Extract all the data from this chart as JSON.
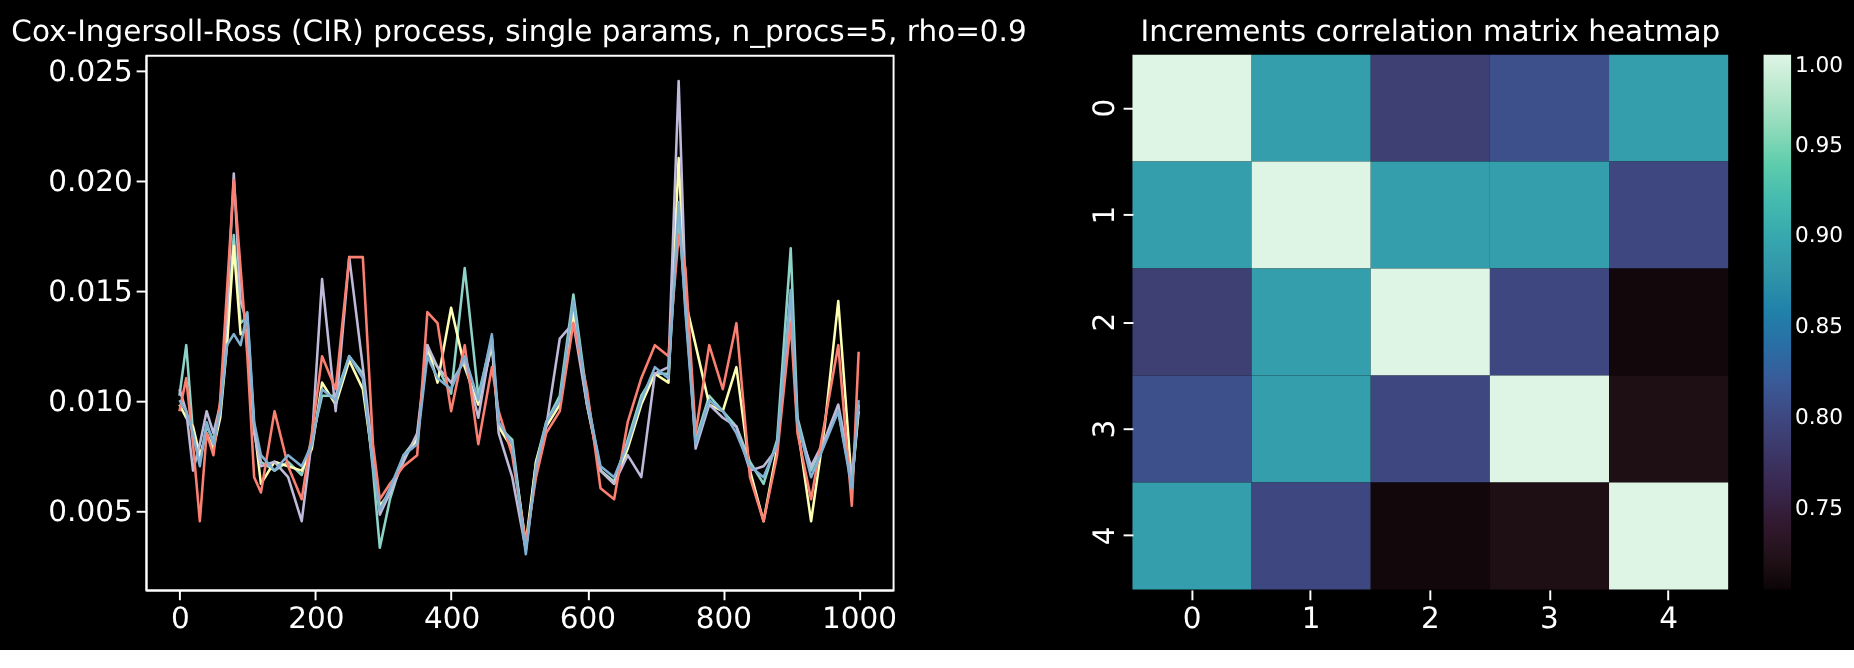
{
  "chart_data": [
    {
      "type": "line",
      "title": "Cox-Ingersoll-Ross (CIR) process, single params, n_procs=5, rho=0.9",
      "x": [
        0,
        10,
        20,
        30,
        40,
        50,
        60,
        70,
        80,
        90,
        100,
        110,
        120,
        140,
        160,
        180,
        195,
        210,
        230,
        250,
        270,
        285,
        295,
        310,
        330,
        350,
        365,
        380,
        400,
        420,
        440,
        460,
        470,
        490,
        510,
        525,
        540,
        560,
        580,
        600,
        620,
        640,
        660,
        680,
        700,
        720,
        735,
        745,
        760,
        780,
        800,
        820,
        840,
        860,
        880,
        900,
        910,
        930,
        950,
        970,
        990,
        1000
      ],
      "series": [
        {
          "color": "#8dd3c7",
          "values": [
            0.0102,
            0.0125,
            0.0085,
            0.0072,
            0.0088,
            0.0082,
            0.0095,
            0.0128,
            0.0175,
            0.0135,
            0.0138,
            0.0088,
            0.0072,
            0.0068,
            0.0072,
            0.0066,
            0.0082,
            0.0102,
            0.0102,
            0.012,
            0.0112,
            0.0068,
            0.0033,
            0.0055,
            0.0075,
            0.0083,
            0.0122,
            0.0115,
            0.0103,
            0.016,
            0.0102,
            0.0128,
            0.0088,
            0.0082,
            0.0032,
            0.0072,
            0.009,
            0.0102,
            0.0148,
            0.0102,
            0.0068,
            0.0063,
            0.0082,
            0.0102,
            0.0112,
            0.0112,
            0.0185,
            0.0142,
            0.0082,
            0.0102,
            0.0095,
            0.0088,
            0.0072,
            0.0062,
            0.0082,
            0.0169,
            0.0092,
            0.0068,
            0.0082,
            0.0095,
            0.0062,
            0.0098
          ]
        },
        {
          "color": "#ffffb3",
          "values": [
            0.0098,
            0.0092,
            0.0088,
            0.0075,
            0.0085,
            0.0078,
            0.0092,
            0.0125,
            0.017,
            0.013,
            0.0132,
            0.0088,
            0.0062,
            0.0072,
            0.007,
            0.0068,
            0.0078,
            0.0108,
            0.0098,
            0.0118,
            0.0105,
            0.0072,
            0.0052,
            0.0058,
            0.0074,
            0.0082,
            0.0125,
            0.0108,
            0.0142,
            0.0115,
            0.0098,
            0.0125,
            0.0088,
            0.0078,
            0.0035,
            0.0072,
            0.0088,
            0.0098,
            0.014,
            0.0098,
            0.0068,
            0.0062,
            0.0078,
            0.0098,
            0.0112,
            0.0108,
            0.021,
            0.0145,
            0.0125,
            0.0098,
            0.0095,
            0.0115,
            0.0068,
            0.0045,
            0.0078,
            0.0145,
            0.0088,
            0.0045,
            0.0088,
            0.0145,
            0.0062,
            0.0095
          ]
        },
        {
          "color": "#bebada",
          "values": [
            0.0105,
            0.0095,
            0.0068,
            0.008,
            0.0095,
            0.0085,
            0.0098,
            0.014,
            0.0203,
            0.0145,
            0.0135,
            0.0085,
            0.007,
            0.0072,
            0.0065,
            0.0045,
            0.0082,
            0.0155,
            0.0095,
            0.0165,
            0.0115,
            0.0075,
            0.0048,
            0.0058,
            0.0072,
            0.0085,
            0.0125,
            0.0115,
            0.0108,
            0.0118,
            0.0092,
            0.0128,
            0.0085,
            0.0065,
            0.0032,
            0.0068,
            0.0088,
            0.0128,
            0.0135,
            0.0098,
            0.0068,
            0.0062,
            0.0075,
            0.0065,
            0.0112,
            0.0115,
            0.0245,
            0.015,
            0.0078,
            0.0098,
            0.0092,
            0.0088,
            0.0068,
            0.007,
            0.0078,
            0.0145,
            0.0088,
            0.007,
            0.0082,
            0.0098,
            0.0065,
            0.0098
          ]
        },
        {
          "color": "#fb8072",
          "values": [
            0.0095,
            0.011,
            0.008,
            0.0045,
            0.0085,
            0.0075,
            0.01,
            0.015,
            0.02,
            0.016,
            0.012,
            0.0065,
            0.0058,
            0.0095,
            0.007,
            0.0055,
            0.0085,
            0.012,
            0.0105,
            0.0165,
            0.0165,
            0.008,
            0.0055,
            0.0062,
            0.007,
            0.0075,
            0.014,
            0.0135,
            0.0095,
            0.0125,
            0.008,
            0.0115,
            0.0095,
            0.0075,
            0.0035,
            0.0065,
            0.0085,
            0.0095,
            0.0135,
            0.0105,
            0.006,
            0.0055,
            0.009,
            0.011,
            0.0125,
            0.012,
            0.0175,
            0.016,
            0.0085,
            0.0125,
            0.0105,
            0.0135,
            0.0065,
            0.0045,
            0.0075,
            0.0135,
            0.0085,
            0.0055,
            0.009,
            0.0125,
            0.0052,
            0.0122
          ]
        },
        {
          "color": "#80b1d3",
          "values": [
            0.01,
            0.0095,
            0.0085,
            0.007,
            0.009,
            0.008,
            0.0095,
            0.0125,
            0.013,
            0.0125,
            0.014,
            0.009,
            0.0075,
            0.0068,
            0.0075,
            0.007,
            0.008,
            0.0105,
            0.01,
            0.012,
            0.011,
            0.007,
            0.005,
            0.006,
            0.0075,
            0.008,
            0.012,
            0.011,
            0.0105,
            0.012,
            0.01,
            0.013,
            0.009,
            0.008,
            0.003,
            0.007,
            0.009,
            0.01,
            0.0145,
            0.01,
            0.007,
            0.0065,
            0.008,
            0.01,
            0.0115,
            0.011,
            0.019,
            0.014,
            0.008,
            0.01,
            0.0095,
            0.0085,
            0.007,
            0.0065,
            0.008,
            0.015,
            0.009,
            0.0065,
            0.008,
            0.0095,
            0.006,
            0.01
          ]
        }
      ],
      "xlim": [
        -50,
        1050
      ],
      "xticks": [
        0,
        200,
        400,
        600,
        800,
        1000
      ],
      "ylim": [
        0.0014,
        0.0257
      ],
      "yticks": [
        {
          "value": 0.005,
          "label": "0.005"
        },
        {
          "value": 0.01,
          "label": "0.010"
        },
        {
          "value": 0.015,
          "label": "0.015"
        },
        {
          "value": 0.02,
          "label": "0.020"
        },
        {
          "value": 0.025,
          "label": "0.025"
        }
      ],
      "grid": false,
      "legend": false,
      "marker": "none",
      "line_style": "solid"
    },
    {
      "type": "heatmap",
      "title": "Increments correlation matrix heatmap",
      "categories": [
        "0",
        "1",
        "2",
        "3",
        "4"
      ],
      "y_categories": [
        "0",
        "1",
        "2",
        "3",
        "4"
      ],
      "cells": [
        [
          1.0,
          0.89,
          0.79,
          0.81,
          0.89
        ],
        [
          0.89,
          1.0,
          0.89,
          0.89,
          0.8
        ],
        [
          0.79,
          0.89,
          1.0,
          0.8,
          0.71
        ],
        [
          0.81,
          0.89,
          0.8,
          1.0,
          0.72
        ],
        [
          0.89,
          0.8,
          0.71,
          0.72,
          1.0
        ]
      ],
      "clim": [
        0.706,
        1.0
      ],
      "cticks": [
        {
          "value": 0.75,
          "label": "0.75"
        },
        {
          "value": 0.8,
          "label": "0.80"
        },
        {
          "value": 0.85,
          "label": "0.85"
        },
        {
          "value": 0.9,
          "label": "0.90"
        },
        {
          "value": 0.95,
          "label": "0.95"
        },
        {
          "value": 1.0,
          "label": "1.00"
        }
      ]
    }
  ]
}
